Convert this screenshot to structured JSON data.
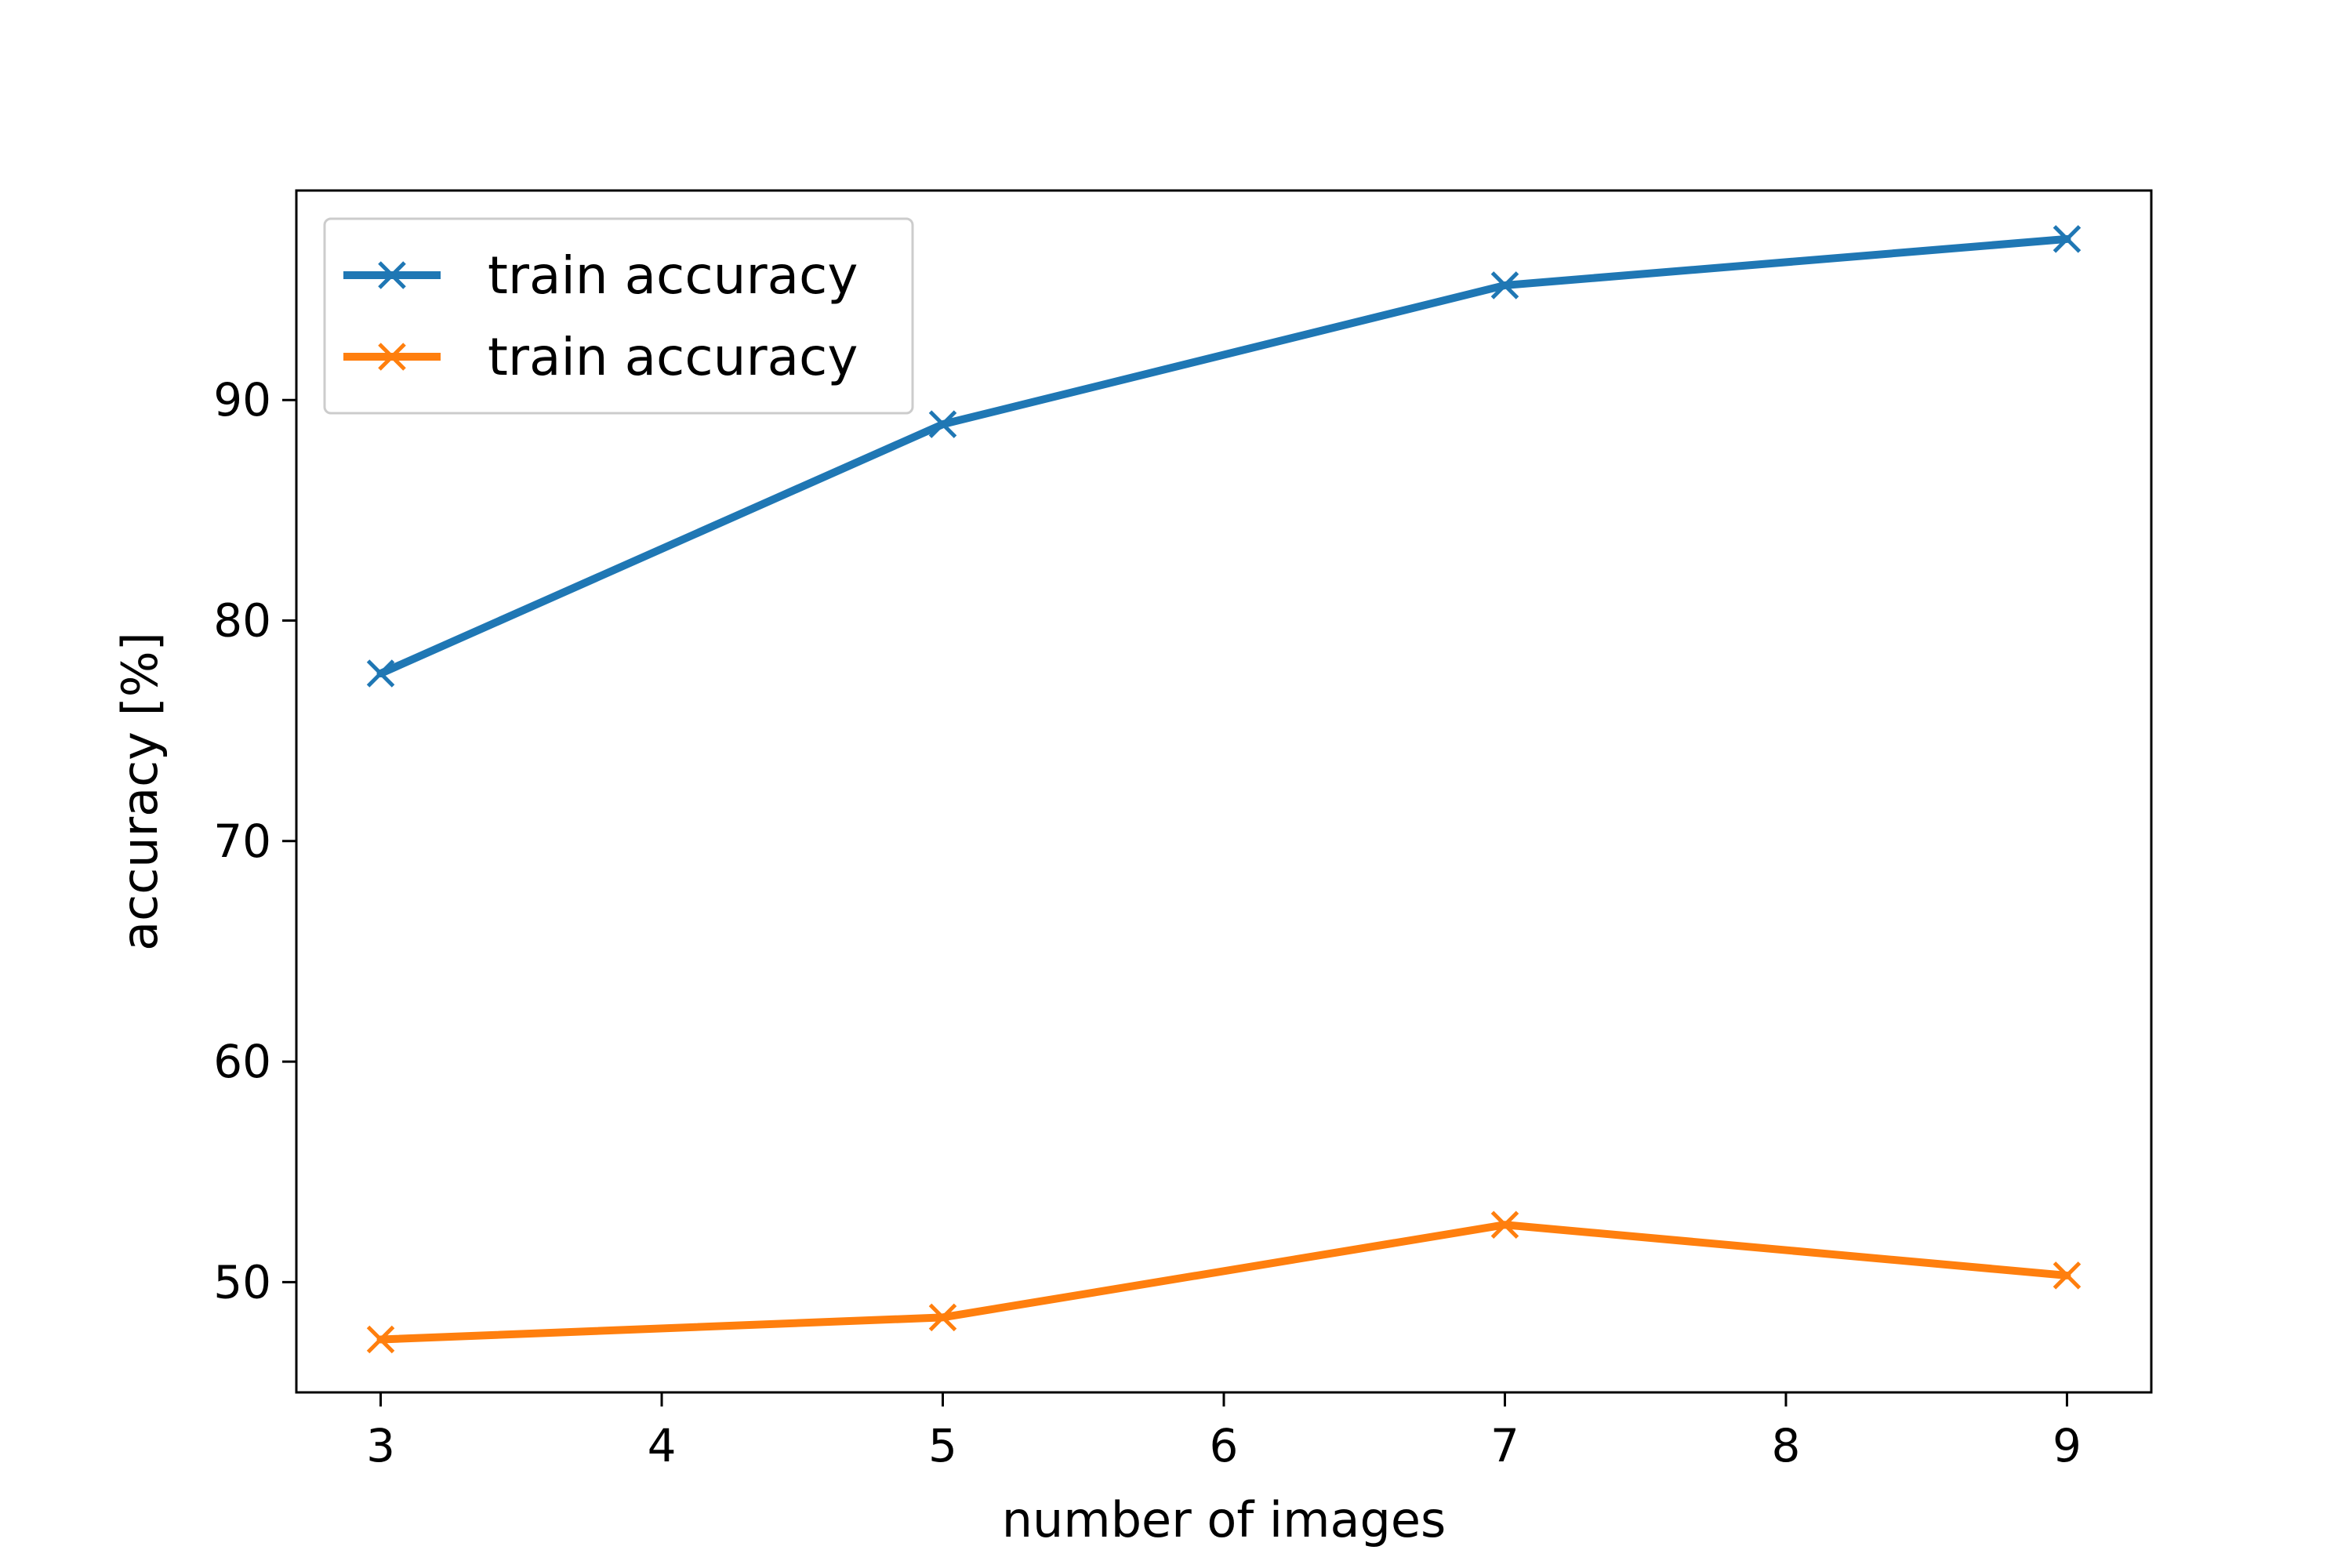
{
  "chart_data": {
    "type": "line",
    "title": "",
    "xlabel": "number of images",
    "ylabel": "accuracy [%]",
    "xlim": [
      2.7,
      9.3
    ],
    "ylim": [
      45,
      99.5
    ],
    "xticks": [
      3,
      4,
      5,
      6,
      7,
      8,
      9
    ],
    "yticks": [
      50,
      60,
      70,
      80,
      90
    ],
    "grid": false,
    "legend_position": "top-left",
    "marker": "x",
    "series": [
      {
        "name": "train accuracy",
        "color": "#1f77b4",
        "x": [
          3,
          5,
          7,
          9
        ],
        "y": [
          77.6,
          88.9,
          95.2,
          97.3
        ]
      },
      {
        "name": "train accuracy",
        "color": "#ff7f0e",
        "x": [
          3,
          5,
          7,
          9
        ],
        "y": [
          47.4,
          48.4,
          52.6,
          50.3
        ]
      }
    ]
  }
}
